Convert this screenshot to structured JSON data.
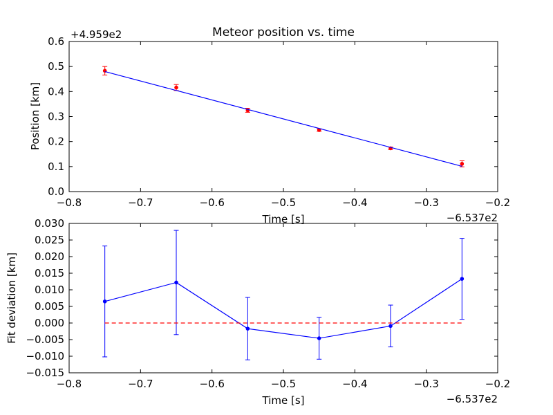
{
  "chart_data": [
    {
      "type": "scatter",
      "title": "Meteor position vs. time",
      "xlabel": "Time [s]",
      "ylabel": "Position [km]",
      "x_offset_label": "−6.537e2",
      "y_offset_label": "+4.959e2",
      "xlim": [
        -0.8,
        -0.2
      ],
      "ylim": [
        0.0,
        0.6
      ],
      "x_ticks": [
        -0.8,
        -0.7,
        -0.6,
        -0.5,
        -0.4,
        -0.3,
        -0.2
      ],
      "x_tick_labels": [
        "−0.8",
        "−0.7",
        "−0.6",
        "−0.5",
        "−0.4",
        "−0.3",
        "−0.2"
      ],
      "y_ticks": [
        0.0,
        0.1,
        0.2,
        0.3,
        0.4,
        0.5,
        0.6
      ],
      "y_tick_labels": [
        "0.0",
        "0.1",
        "0.2",
        "0.3",
        "0.4",
        "0.5",
        "0.6"
      ],
      "grid": false,
      "series": [
        {
          "kind": "points_with_errorbars",
          "color": "#ff0000",
          "x": [
            -0.75,
            -0.65,
            -0.55,
            -0.45,
            -0.35,
            -0.25
          ],
          "y": [
            0.483,
            0.416,
            0.325,
            0.246,
            0.173,
            0.111
          ],
          "yerr": [
            0.017,
            0.012,
            0.008,
            0.005,
            0.005,
            0.012
          ]
        },
        {
          "kind": "fit_line",
          "color": "#0000ff",
          "x": [
            -0.75,
            -0.25
          ],
          "y": [
            0.48,
            0.101
          ]
        }
      ]
    },
    {
      "type": "line",
      "xlabel": "Time [s]",
      "ylabel": "Fit deviation [km]",
      "x_offset_label": "−6.537e2",
      "xlim": [
        -0.8,
        -0.2
      ],
      "ylim": [
        -0.015,
        0.03
      ],
      "x_ticks": [
        -0.8,
        -0.7,
        -0.6,
        -0.5,
        -0.4,
        -0.3,
        -0.2
      ],
      "x_tick_labels": [
        "−0.8",
        "−0.7",
        "−0.6",
        "−0.5",
        "−0.4",
        "−0.3",
        "−0.2"
      ],
      "y_ticks": [
        -0.015,
        -0.01,
        -0.005,
        0.0,
        0.005,
        0.01,
        0.015,
        0.02,
        0.025,
        0.03
      ],
      "y_tick_labels": [
        "−0.015",
        "−0.010",
        "−0.005",
        "0.000",
        "0.005",
        "0.010",
        "0.015",
        "0.020",
        "0.025",
        "0.030"
      ],
      "grid": false,
      "series": [
        {
          "kind": "line_with_errorbars",
          "color": "#0000ff",
          "x": [
            -0.75,
            -0.65,
            -0.55,
            -0.45,
            -0.35,
            -0.25
          ],
          "y": [
            0.0065,
            0.0122,
            -0.0017,
            -0.0046,
            -0.0009,
            0.0133
          ],
          "yerr": [
            0.0167,
            0.0157,
            0.0094,
            0.0063,
            0.0063,
            0.0122
          ]
        },
        {
          "kind": "zero_line",
          "color": "#ff0000",
          "style": "dashed",
          "x": [
            -0.75,
            -0.25
          ],
          "y": [
            0.0,
            0.0
          ]
        }
      ]
    }
  ]
}
